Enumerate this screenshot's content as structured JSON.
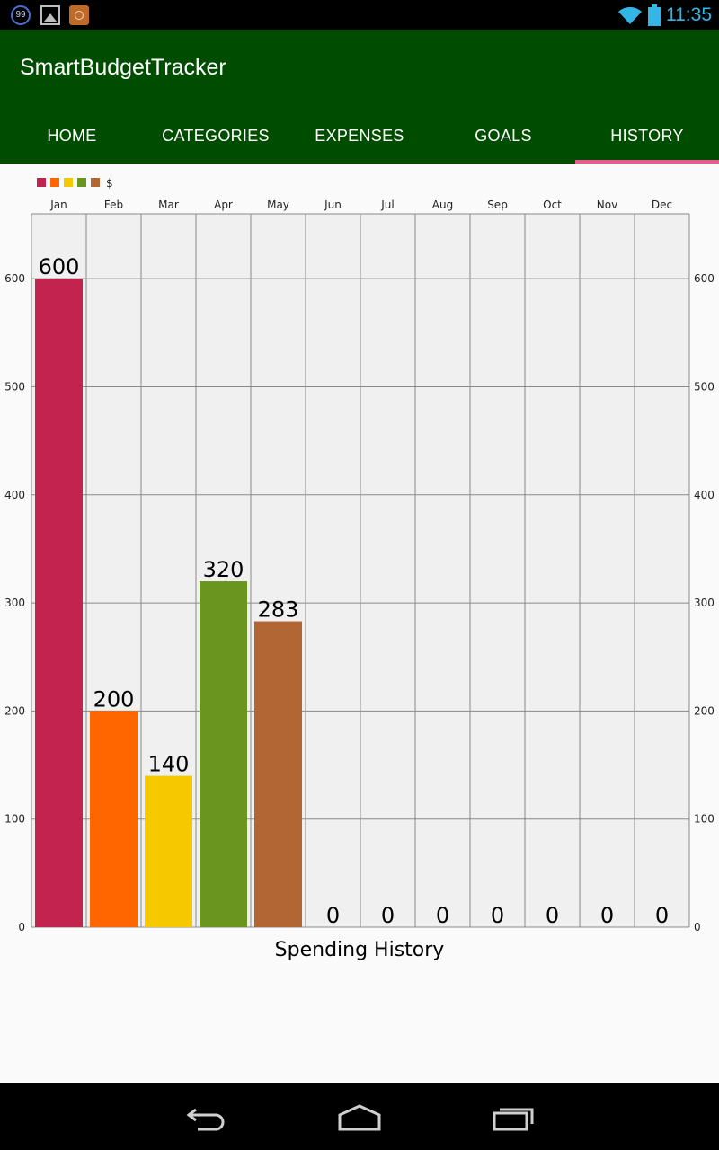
{
  "status_bar": {
    "badge_text": "99",
    "time": "11:35",
    "icons": [
      "notification-99-icon",
      "gallery-icon",
      "app-notification-icon",
      "wifi-icon",
      "battery-icon"
    ]
  },
  "app": {
    "title": "SmartBudgetTracker"
  },
  "tabs": [
    {
      "label": "HOME"
    },
    {
      "label": "CATEGORIES"
    },
    {
      "label": "EXPENSES"
    },
    {
      "label": "GOALS"
    },
    {
      "label": "HISTORY",
      "active": true
    }
  ],
  "chart_data": {
    "type": "bar",
    "categories": [
      "Jan",
      "Feb",
      "Mar",
      "Apr",
      "May",
      "Jun",
      "Jul",
      "Aug",
      "Sep",
      "Oct",
      "Nov",
      "Dec"
    ],
    "values": [
      600,
      200,
      140,
      320,
      283,
      0,
      0,
      0,
      0,
      0,
      0,
      0
    ],
    "bar_colors": [
      "#c2234f",
      "#ff6600",
      "#f5c800",
      "#6a9620",
      "#b26634"
    ],
    "legend_label": "$",
    "legend_colors": [
      "#c2234f",
      "#ff6600",
      "#f5c800",
      "#6a9620",
      "#b26634"
    ],
    "title": "Spending History",
    "yticks": [
      0,
      100,
      200,
      300,
      400,
      500,
      600
    ],
    "ylim": [
      0,
      660
    ],
    "grid": true,
    "legend_position": "top-left",
    "x_axis_position": "top",
    "y_axis": "both-sides"
  },
  "nav_bar": {
    "icons": [
      "back-icon",
      "home-icon",
      "recents-icon"
    ]
  }
}
